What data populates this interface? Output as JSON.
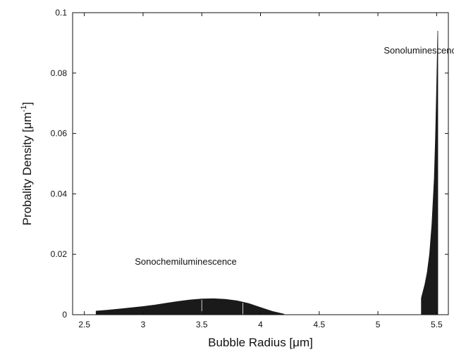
{
  "chart_data": {
    "type": "area",
    "xlabel_main": "Bubble Radius [",
    "xlabel_unit": "μm",
    "xlabel_end": "]",
    "ylabel_main": "Probality Density [",
    "ylabel_unit": "μm",
    "ylabel_exp": "-1",
    "ylabel_end": "]",
    "xlim": [
      2.4,
      5.6
    ],
    "ylim": [
      0,
      0.1
    ],
    "xticks": [
      2.5,
      3,
      3.5,
      4,
      4.5,
      5,
      5.5
    ],
    "xtick_labels": [
      "2.5",
      "3",
      "3.5",
      "4",
      "4.5",
      "5",
      "5.5"
    ],
    "yticks": [
      0,
      0.02,
      0.04,
      0.06,
      0.08,
      0.1
    ],
    "ytick_labels": [
      "0",
      "0.02",
      "0.04",
      "0.06",
      "0.08",
      "0.1"
    ],
    "fill_color": "#1a1a1a",
    "series": [
      {
        "x": [
          2.6,
          2.7,
          2.8,
          2.9,
          3.0,
          3.1,
          3.2,
          3.3,
          3.4,
          3.5,
          3.6,
          3.7,
          3.8,
          3.9,
          4.0,
          4.1,
          4.2
        ],
        "y": [
          0.0012,
          0.0015,
          0.0019,
          0.0023,
          0.0027,
          0.0032,
          0.0038,
          0.0044,
          0.0049,
          0.0052,
          0.0053,
          0.0051,
          0.0046,
          0.0037,
          0.0024,
          0.0011,
          0.0002
        ]
      },
      {
        "x": [
          5.37,
          5.38,
          5.4,
          5.42,
          5.44,
          5.46,
          5.48,
          5.49,
          5.5,
          5.51
        ],
        "y": [
          0.0055,
          0.007,
          0.01,
          0.014,
          0.02,
          0.03,
          0.045,
          0.058,
          0.075,
          0.094
        ]
      }
    ],
    "dividers_x": [
      3.5,
      3.85
    ],
    "annotations": [
      {
        "text": "Sonoluminescence",
        "x": 5.05,
        "y": 0.0865
      },
      {
        "text": "Sonochemiluminescence",
        "x": 2.93,
        "y": 0.0165
      }
    ]
  }
}
